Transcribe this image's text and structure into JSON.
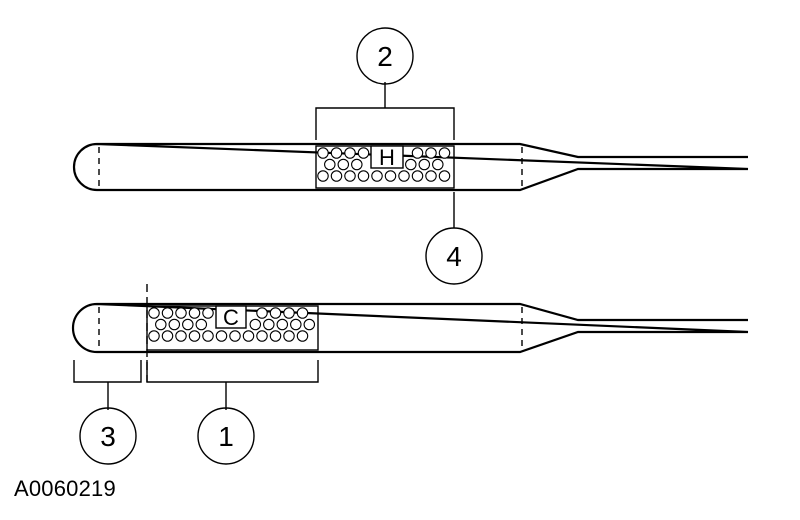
{
  "figure_id": "A0060219",
  "probes": [
    {
      "id": "probe-top",
      "zone_label": "H"
    },
    {
      "id": "probe-bottom",
      "zone_label": "C"
    }
  ],
  "callouts": [
    "1",
    "2",
    "3",
    "4"
  ]
}
